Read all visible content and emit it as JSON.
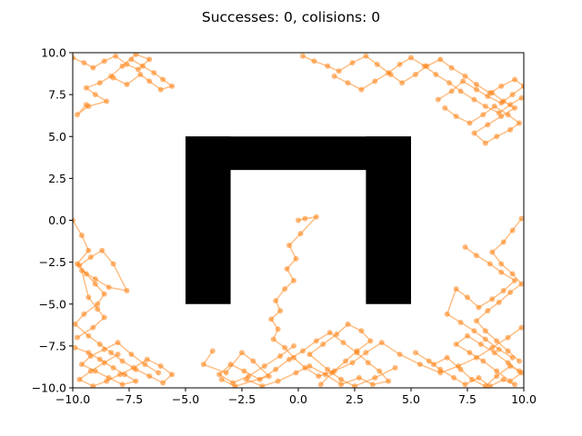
{
  "chart_data": {
    "type": "scatter",
    "title": "Successes: 0, colisions: 0",
    "xlabel": "",
    "ylabel": "",
    "xlim": [
      -10,
      10
    ],
    "ylim": [
      -10,
      10
    ],
    "x_ticks": [
      -10,
      -7.5,
      -5,
      -2.5,
      0,
      2.5,
      5,
      7.5,
      10
    ],
    "x_tick_labels": [
      "−10.0",
      "−7.5",
      "−5.0",
      "−2.5",
      "0.0",
      "2.5",
      "5.0",
      "7.5",
      "10.0"
    ],
    "y_ticks": [
      -10,
      -7.5,
      -5,
      -2.5,
      0,
      2.5,
      5,
      7.5,
      10
    ],
    "y_tick_labels": [
      "−10.0",
      "−7.5",
      "−5.0",
      "−2.5",
      "0.0",
      "2.5",
      "5.0",
      "7.5",
      "10.0"
    ],
    "grid": false,
    "colors": {
      "trajectory": "#ff7f0e",
      "obstacle": "#000000"
    },
    "obstacles": [
      {
        "x": [
          -5,
          -3
        ],
        "y": [
          -5,
          5
        ]
      },
      {
        "x": [
          3,
          5
        ],
        "y": [
          -5,
          5
        ]
      },
      {
        "x": [
          -5,
          5
        ],
        "y": [
          3,
          5
        ]
      }
    ],
    "series": [
      {
        "x": [
          0.0,
          0.3,
          0.8,
          0.1,
          -0.4,
          -0.1,
          -0.5,
          -0.2,
          -0.6,
          -1.0,
          -0.8,
          -1.2,
          -0.9,
          -1.1,
          -0.6,
          -0.2,
          0.3,
          0.9,
          1.6,
          2.4,
          3.0,
          3.7,
          4.5,
          5.4,
          6.3,
          7.1,
          7.9,
          8.6,
          9.3,
          9.9
        ],
        "y": [
          0.0,
          0.1,
          0.2,
          -0.8,
          -1.5,
          -2.3,
          -2.9,
          -3.6,
          -4.1,
          -4.8,
          -5.4,
          -5.9,
          -6.5,
          -7.1,
          -7.6,
          -8.2,
          -8.8,
          -9.3,
          -9.0,
          -8.5,
          -7.9,
          -7.3,
          -8.0,
          -8.6,
          -9.1,
          -8.7,
          -8.2,
          -7.6,
          -7.0,
          -6.4
        ]
      },
      {
        "x": [
          -0.2,
          -0.8,
          -1.5,
          -2.2,
          -2.9,
          -3.5,
          -3.0,
          -2.4,
          -1.7,
          -1.0,
          -0.4,
          0.2,
          0.8,
          1.4,
          2.0,
          2.6,
          3.1,
          3.6,
          4.0,
          3.3,
          2.7,
          1.9,
          1.2,
          0.5,
          -0.1,
          -0.9,
          -1.6,
          -2.3
        ],
        "y": [
          -7.5,
          -8.1,
          -8.7,
          -9.3,
          -9.7,
          -9.2,
          -8.6,
          -9.0,
          -9.5,
          -8.9,
          -8.3,
          -7.8,
          -7.2,
          -6.7,
          -7.3,
          -7.9,
          -8.5,
          -9.0,
          -9.6,
          -9.8,
          -9.4,
          -9.8,
          -9.2,
          -8.7,
          -9.1,
          -9.6,
          -9.9,
          -9.5
        ]
      },
      {
        "x": [
          1.0,
          1.5,
          2.1,
          2.6,
          3.2,
          2.8,
          2.2,
          1.7,
          1.1,
          0.5,
          1.3,
          1.9,
          2.5,
          3.4,
          4.3
        ],
        "y": [
          -9.8,
          -9.1,
          -8.4,
          -7.8,
          -7.2,
          -6.6,
          -6.2,
          -6.8,
          -7.4,
          -8.0,
          -8.9,
          -9.5,
          -9.9,
          -9.4,
          -8.8
        ]
      },
      {
        "x": [
          -3.8,
          -4.2,
          -3.2,
          -2.5,
          -2.0,
          -1.3,
          -2.8,
          -3.4
        ],
        "y": [
          -7.8,
          -8.6,
          -9.1,
          -7.9,
          -8.4,
          -9.3,
          -9.9,
          -9.5
        ]
      },
      {
        "x": [
          -10.0,
          -9.6,
          -9.3,
          -9.8,
          -9.4,
          -9.0,
          -8.6,
          -8.9,
          -9.5,
          -9.9,
          -9.3,
          -8.8,
          -8.3,
          -7.8,
          -7.2,
          -6.6,
          -6.0,
          -5.6,
          -6.1,
          -6.7,
          -7.3,
          -7.9,
          -8.5,
          -9.1,
          -9.7,
          -9.2,
          -8.6,
          -8.0
        ],
        "y": [
          0.0,
          -0.9,
          -1.8,
          -2.6,
          -3.2,
          -3.8,
          -4.4,
          -5.0,
          -5.6,
          -6.2,
          -6.9,
          -7.4,
          -7.9,
          -8.4,
          -8.9,
          -9.3,
          -9.7,
          -9.2,
          -8.7,
          -8.3,
          -8.8,
          -9.2,
          -9.6,
          -9.9,
          -9.5,
          -9.0,
          -8.5,
          -8.0
        ]
      },
      {
        "x": [
          -9.7,
          -9.2,
          -8.7,
          -8.2,
          -7.6,
          -8.4,
          -9.0,
          -9.6,
          -9.3,
          -8.9,
          -8.6,
          -9.1,
          -9.8
        ],
        "y": [
          -2.7,
          -2.2,
          -1.8,
          -2.6,
          -4.2,
          -4.0,
          -3.5,
          -3.0,
          -4.6,
          -5.3,
          -5.8,
          -6.4,
          -7.0
        ]
      },
      {
        "x": [
          -9.9,
          -9.3,
          -8.8,
          -8.2,
          -7.7,
          -7.2,
          -7.8,
          -8.4,
          -9.0,
          -9.6,
          -9.2,
          -8.6,
          -8.0,
          -7.4,
          -6.8,
          -6.2
        ],
        "y": [
          -7.6,
          -7.9,
          -8.3,
          -8.8,
          -9.2,
          -9.6,
          -9.8,
          -9.4,
          -9.0,
          -8.6,
          -8.1,
          -7.7,
          -7.3,
          -8.0,
          -8.6,
          -9.1
        ]
      },
      {
        "x": [
          -10.0,
          -9.5,
          -9.1,
          -8.6,
          -8.1,
          -7.6,
          -7.1,
          -6.6,
          -7.2,
          -7.8,
          -8.3,
          -8.8,
          -9.4,
          -9.0,
          -8.5,
          -9.3,
          -9.8,
          -9.4
        ],
        "y": [
          9.7,
          9.4,
          9.1,
          9.5,
          9.8,
          9.3,
          9.0,
          9.6,
          9.9,
          9.2,
          8.6,
          8.2,
          7.9,
          7.5,
          7.1,
          6.8,
          6.3,
          6.9
        ]
      },
      {
        "x": [
          -7.4,
          -6.9,
          -6.4,
          -6.0,
          -5.6,
          -6.1,
          -6.6,
          -7.0,
          -7.6,
          -8.2
        ],
        "y": [
          9.6,
          9.2,
          8.8,
          8.4,
          8.0,
          7.8,
          8.3,
          8.7,
          8.1,
          8.5
        ]
      },
      {
        "x": [
          0.2,
          0.7,
          1.3,
          1.8,
          2.4,
          3.0,
          3.5,
          4.1,
          4.6,
          5.2,
          5.7,
          6.3,
          6.8,
          7.4,
          7.9,
          8.5,
          9.0,
          9.6,
          10.0,
          9.5,
          9.0,
          8.4,
          7.9,
          7.3,
          6.8,
          6.2
        ],
        "y": [
          9.8,
          9.5,
          9.2,
          8.9,
          9.4,
          9.8,
          9.3,
          8.7,
          8.2,
          8.7,
          9.2,
          9.6,
          9.1,
          8.6,
          8.1,
          7.6,
          8.0,
          8.4,
          8.0,
          7.5,
          7.0,
          7.4,
          7.8,
          8.3,
          7.7,
          7.2
        ]
      },
      {
        "x": [
          1.6,
          2.2,
          2.8,
          3.4,
          4.0,
          4.5,
          5.0,
          5.6,
          6.1,
          6.7,
          7.2,
          7.8,
          8.3,
          8.9,
          9.4,
          9.9
        ],
        "y": [
          8.6,
          8.2,
          7.8,
          8.3,
          8.8,
          9.3,
          9.7,
          9.2,
          8.7,
          8.2,
          7.7,
          7.2,
          6.8,
          6.4,
          6.9,
          7.3
        ]
      },
      {
        "x": [
          6.5,
          7.0,
          7.6,
          8.2,
          8.7,
          9.3,
          9.8,
          9.4,
          8.8,
          8.3,
          7.8,
          8.4,
          9.0,
          9.6,
          9.1,
          8.6
        ],
        "y": [
          6.7,
          6.2,
          5.8,
          6.3,
          6.8,
          6.3,
          5.8,
          5.4,
          5.0,
          4.6,
          5.2,
          5.7,
          6.2,
          6.7,
          7.1,
          7.6
        ]
      },
      {
        "x": [
          9.9,
          9.5,
          9.1,
          8.6,
          9.0,
          9.5,
          9.9,
          9.4,
          8.9,
          8.4,
          7.9,
          8.3,
          8.8,
          9.3,
          9.8
        ],
        "y": [
          0.1,
          -0.6,
          -1.3,
          -1.9,
          -2.6,
          -3.2,
          -3.8,
          -4.3,
          -4.9,
          -5.4,
          -6.0,
          -6.6,
          -7.2,
          -7.8,
          -8.4
        ]
      },
      {
        "x": [
          7.4,
          7.9,
          8.5,
          9.0,
          9.6,
          9.1,
          8.6,
          8.0,
          7.5,
          7.0,
          6.6,
          7.2,
          7.8,
          8.3,
          8.9,
          9.5
        ],
        "y": [
          -1.6,
          -2.1,
          -2.6,
          -3.1,
          -3.6,
          -4.2,
          -4.7,
          -5.2,
          -4.6,
          -4.1,
          -5.6,
          -6.1,
          -6.6,
          -7.1,
          -7.7,
          -8.2
        ]
      },
      {
        "x": [
          6.0,
          6.6,
          7.2,
          7.7,
          8.3,
          8.8,
          9.4,
          9.9,
          9.4,
          8.8,
          8.2,
          7.6,
          7.0,
          7.5,
          8.1,
          8.7,
          9.3,
          9.8
        ],
        "y": [
          -8.6,
          -8.2,
          -8.9,
          -9.5,
          -9.9,
          -9.3,
          -8.7,
          -9.1,
          -9.6,
          -9.0,
          -8.4,
          -7.9,
          -7.4,
          -6.9,
          -7.4,
          -7.9,
          -8.5,
          -9.0
        ]
      },
      {
        "x": [
          5.2,
          5.8,
          6.3,
          6.9,
          7.4,
          8.0,
          8.5,
          9.1,
          9.6
        ],
        "y": [
          -7.9,
          -8.4,
          -8.9,
          -9.4,
          -9.8,
          -9.4,
          -9.9,
          -9.5,
          -9.8
        ]
      }
    ]
  }
}
